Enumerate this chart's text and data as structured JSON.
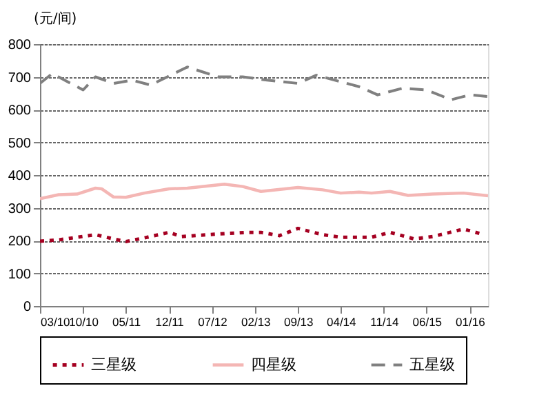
{
  "chart_data": {
    "type": "line",
    "ylabel": "(元/间)",
    "xlim": [
      "2010-03",
      "2016-04"
    ],
    "xticks": [
      {
        "value": "2010-03",
        "label": "03/10"
      },
      {
        "value": "2010-10",
        "label": "10/10"
      },
      {
        "value": "2011-05",
        "label": "05/11"
      },
      {
        "value": "2011-12",
        "label": "12/11"
      },
      {
        "value": "2012-07",
        "label": "07/12"
      },
      {
        "value": "2013-02",
        "label": "02/13"
      },
      {
        "value": "2013-09",
        "label": "09/13"
      },
      {
        "value": "2014-04",
        "label": "04/14"
      },
      {
        "value": "2014-11",
        "label": "11/14"
      },
      {
        "value": "2015-06",
        "label": "06/15"
      },
      {
        "value": "2016-01",
        "label": "01/16"
      }
    ],
    "ylim": [
      0,
      800
    ],
    "yticks": [
      0,
      100,
      200,
      300,
      400,
      500,
      600,
      700,
      800
    ],
    "grid": "y",
    "legend": "bottom",
    "series": [
      {
        "name": "三星级",
        "color": "#a50021",
        "line_style": "dotted",
        "x": [
          "2010-03",
          "2010-06",
          "2010-09",
          "2010-12",
          "2011-03",
          "2011-05",
          "2011-08",
          "2011-12",
          "2012-02",
          "2012-08",
          "2013-01",
          "2013-03",
          "2013-06",
          "2013-09",
          "2014-01",
          "2014-04",
          "2014-09",
          "2014-12",
          "2015-04",
          "2015-07",
          "2015-12",
          "2016-03"
        ],
        "values": [
          198,
          202,
          210,
          218,
          205,
          197,
          208,
          225,
          212,
          220,
          225,
          225,
          215,
          237,
          218,
          210,
          210,
          225,
          205,
          212,
          235,
          220
        ]
      },
      {
        "name": "四星级",
        "color": "#f4b6b4",
        "line_style": "solid",
        "x": [
          "2010-03",
          "2010-06",
          "2010-09",
          "2010-12",
          "2011-01",
          "2011-03",
          "2011-05",
          "2011-08",
          "2011-12",
          "2012-03",
          "2012-09",
          "2012-12",
          "2013-03",
          "2013-09",
          "2014-01",
          "2014-04",
          "2014-07",
          "2014-09",
          "2014-12",
          "2015-03",
          "2015-07",
          "2015-12",
          "2016-04"
        ],
        "values": [
          328,
          340,
          342,
          360,
          358,
          333,
          332,
          345,
          358,
          360,
          372,
          365,
          350,
          362,
          355,
          345,
          348,
          345,
          350,
          338,
          342,
          345,
          337
        ]
      },
      {
        "name": "五星级",
        "color": "#808080",
        "line_style": "dashed",
        "x": [
          "2010-03",
          "2010-05",
          "2010-10",
          "2010-12",
          "2011-03",
          "2011-06",
          "2011-09",
          "2012-03",
          "2012-08",
          "2012-12",
          "2013-04",
          "2013-09",
          "2013-12",
          "2014-07",
          "2014-10",
          "2015-02",
          "2015-06",
          "2015-10",
          "2016-01",
          "2016-04"
        ],
        "values": [
          680,
          710,
          660,
          700,
          680,
          690,
          675,
          730,
          700,
          700,
          690,
          680,
          705,
          670,
          645,
          665,
          660,
          630,
          645,
          640
        ]
      }
    ]
  }
}
